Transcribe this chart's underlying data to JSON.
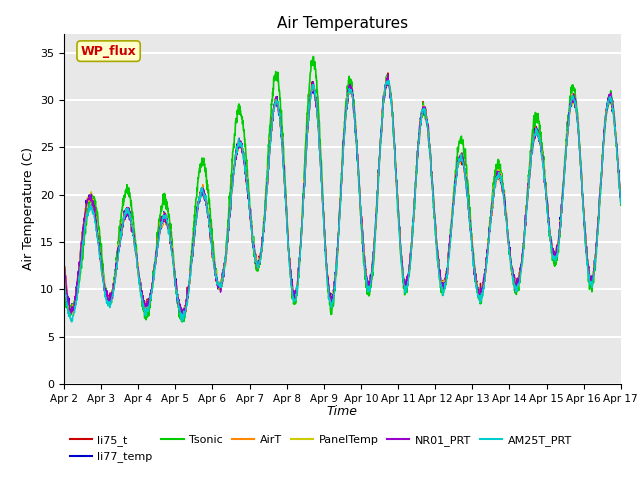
{
  "title": "Air Temperatures",
  "xlabel": "Time",
  "ylabel": "Air Temperature (C)",
  "ylim": [
    0,
    37
  ],
  "yticks": [
    0,
    5,
    10,
    15,
    20,
    25,
    30,
    35
  ],
  "plot_bg_color": "#e8e8e8",
  "grid_color": "#ffffff",
  "annotation_text": "WP_flux",
  "annotation_bg": "#ffffcc",
  "annotation_fg": "#cc0000",
  "series": [
    {
      "name": "li75_t",
      "color": "#cc0000",
      "lw": 1.0
    },
    {
      "name": "li77_temp",
      "color": "#0000cc",
      "lw": 1.0
    },
    {
      "name": "Tsonic",
      "color": "#00cc00",
      "lw": 1.2
    },
    {
      "name": "AirT",
      "color": "#ff8800",
      "lw": 1.0
    },
    {
      "name": "PanelTemp",
      "color": "#cccc00",
      "lw": 1.0
    },
    {
      "name": "NR01_PRT",
      "color": "#9900cc",
      "lw": 1.0
    },
    {
      "name": "AM25T_PRT",
      "color": "#00cccc",
      "lw": 1.0
    }
  ],
  "n_days": 15,
  "pts_per_day": 144,
  "base_peaks": [
    21.5,
    19.0,
    18.0,
    17.5,
    21.5,
    27.0,
    31.0,
    31.5,
    31.0,
    32.5,
    27.5,
    22.5,
    22.0,
    28.5,
    31.0,
    30.0
  ],
  "base_troughs": [
    7.5,
    9.0,
    8.5,
    7.0,
    9.5,
    13.5,
    9.5,
    8.5,
    10.5,
    10.5,
    10.5,
    9.5,
    9.5,
    14.5,
    10.5,
    13.0
  ],
  "tsonic_peaks": [
    11.0,
    23.0,
    19.5,
    19.5,
    25.0,
    30.5,
    33.5,
    34.5,
    31.0,
    32.5,
    27.5,
    25.0,
    22.5,
    30.5,
    31.5,
    30.0
  ],
  "tsonic_troughs": [
    7.5,
    9.0,
    7.5,
    6.0,
    9.5,
    13.0,
    9.0,
    7.5,
    9.5,
    10.0,
    10.0,
    9.0,
    9.0,
    13.5,
    10.0,
    12.5
  ],
  "am25t_peaks": [
    18.0,
    19.0,
    18.0,
    17.5,
    21.5,
    27.0,
    31.0,
    31.5,
    31.0,
    32.5,
    27.5,
    22.5,
    22.0,
    28.5,
    31.0,
    30.0
  ],
  "am25t_troughs": [
    6.5,
    8.5,
    8.0,
    6.5,
    9.5,
    13.5,
    9.0,
    8.0,
    10.0,
    10.0,
    10.0,
    9.0,
    9.0,
    14.0,
    10.0,
    12.5
  ]
}
